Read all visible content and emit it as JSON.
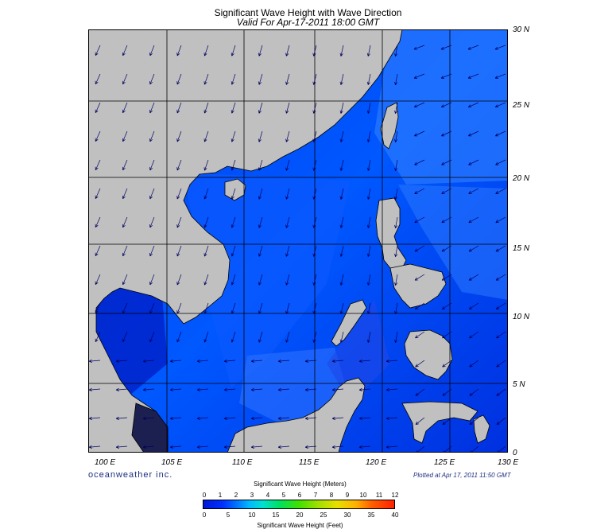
{
  "title": "Significant Wave Height with Wave Direction",
  "subtitle": "Valid For Apr-17-2011 18:00 GMT",
  "lon_labels": [
    "100 E",
    "105 E",
    "110 E",
    "115 E",
    "120 E",
    "125 E",
    "130 E"
  ],
  "lat_labels": [
    "30 N",
    "25 N",
    "20 N",
    "15 N",
    "10 N",
    "5 N",
    "0"
  ],
  "brand": "oceanweather inc.",
  "plotted": "Plotted at Apr 17, 2011 11:50 GMT",
  "colorbar": {
    "title_meters": "Significant Wave Height (Meters)",
    "title_feet": "Significant Wave Height (Feet)",
    "meter_ticks": [
      "0",
      "1",
      "2",
      "3",
      "4",
      "5",
      "6",
      "7",
      "8",
      "9",
      "10",
      "11",
      "12"
    ],
    "feet_ticks": [
      "0",
      "5",
      "10",
      "15",
      "20",
      "25",
      "30",
      "35",
      "40"
    ]
  },
  "colors": {
    "land": "#c0c0c0",
    "sea_low": "#0018d8",
    "sea_mid": "#0050ff",
    "sea_hi": "#2c7cff",
    "grid": "#000000"
  },
  "extent": {
    "lon": [
      99.5,
      130
    ],
    "lat": [
      0,
      30
    ]
  }
}
